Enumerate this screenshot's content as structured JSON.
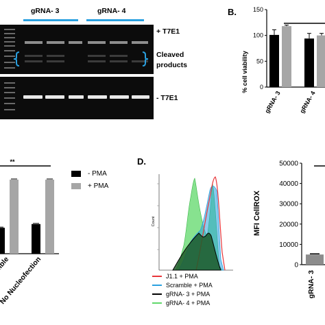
{
  "panel_a": {
    "lane_group_1": "gRNA- 3",
    "lane_group_2": "gRNA- 4",
    "label_plus_t7e1": "+ T7E1",
    "label_cleaved_1": "Cleaved",
    "label_cleaved_2": "products",
    "label_minus_t7e1": "- T7E1",
    "bracket_color": "#2aa0e0"
  },
  "panel_b": {
    "letter": "B.",
    "chart_data": {
      "type": "bar",
      "ylabel": "% cell viability",
      "ylim": [
        0,
        150
      ],
      "yticks": [
        "0",
        "50",
        "100",
        "150"
      ],
      "categories": [
        "gRNA- 3",
        "gRNA- 4"
      ],
      "series": [
        {
          "color": "#000000",
          "values": [
            101,
            94
          ]
        },
        {
          "color": "#a6a6a6",
          "values": [
            118,
            100
          ]
        }
      ],
      "errors": [
        [
          10,
          10
        ],
        [
          2,
          4
        ]
      ]
    }
  },
  "panel_c": {
    "significance": "**",
    "legend": [
      {
        "label": "- PMA",
        "color": "#000000"
      },
      {
        "label": "+ PMA",
        "color": "#a6a6a6"
      }
    ],
    "chart_data": {
      "type": "bar",
      "categories": [
        "mble",
        "No Nucleofection"
      ],
      "series": [
        {
          "color": "#000000",
          "values": [
            35,
            40
          ]
        },
        {
          "color": "#a6a6a6",
          "values": [
            100,
            100
          ]
        }
      ]
    }
  },
  "panel_d": {
    "letter": "D.",
    "hist_ylabel": "Count",
    "legend": [
      {
        "label": "J1.1 + PMA",
        "color": "#e8353a"
      },
      {
        "label": "Scramble + PMA",
        "color": "#2aa0e0"
      },
      {
        "label": "gRNA- 3 + PMA",
        "color": "#000000"
      },
      {
        "label": "gRNA- 4 + PMA",
        "color": "#5fd86a"
      }
    ],
    "bar_chart": {
      "chart_data": {
        "type": "bar",
        "ylabel": "MFI CellROX",
        "ylim": [
          0,
          50000
        ],
        "yticks": [
          "0",
          "10000",
          "20000",
          "30000",
          "40000",
          "50000"
        ],
        "categories": [
          "gRNA- 3"
        ],
        "values": [
          5000
        ]
      }
    }
  }
}
